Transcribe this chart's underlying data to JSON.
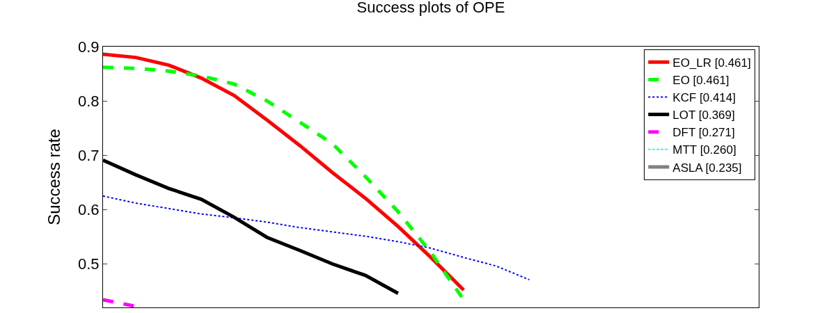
{
  "chart_data": {
    "type": "line",
    "title": "Success plots of OPE",
    "ylabel": "Success rate",
    "categories": [
      null,
      null,
      null,
      null,
      null,
      null,
      null,
      null,
      null,
      null,
      null,
      null,
      null,
      null,
      null,
      null,
      null,
      null,
      null,
      null,
      null
    ],
    "ylim": [
      0.42,
      0.9
    ],
    "yticks": [
      0.5,
      0.6,
      0.7,
      0.8,
      0.9
    ],
    "grid": false,
    "legend": "top right",
    "marker": "none",
    "tick_labels": "y",
    "series": [
      {
        "name": "EO_LR [0.461]",
        "color": "#ff0000",
        "line_style": "solid",
        "values": [
          0.886,
          0.88,
          0.866,
          0.842,
          0.81,
          0.765,
          0.718,
          0.668,
          0.621,
          0.569,
          0.512,
          0.452,
          null,
          null,
          null,
          null,
          null,
          null,
          null,
          null,
          null
        ]
      },
      {
        "name": "EO [0.461]",
        "color": "#00ff00",
        "line_style": "dashed",
        "values": [
          0.862,
          0.86,
          0.855,
          0.846,
          0.831,
          0.8,
          0.761,
          0.721,
          0.661,
          0.596,
          0.521,
          0.434,
          null,
          null,
          null,
          null,
          null,
          null,
          null,
          null,
          null
        ]
      },
      {
        "name": "KCF [0.414]",
        "color": "#0000ff",
        "line_style": "dotted",
        "values": [
          0.625,
          0.612,
          0.602,
          0.592,
          0.585,
          0.577,
          0.567,
          0.559,
          0.551,
          0.541,
          0.529,
          0.512,
          0.496,
          0.471,
          null,
          null,
          null,
          null,
          null,
          null,
          null
        ]
      },
      {
        "name": "LOT [0.369]",
        "color": "#000000",
        "line_style": "solid",
        "values": [
          0.691,
          0.664,
          0.639,
          0.619,
          0.586,
          0.549,
          0.525,
          0.5,
          0.479,
          0.446,
          null,
          null,
          null,
          null,
          null,
          null,
          null,
          null,
          null,
          null,
          null
        ]
      },
      {
        "name": "DFT [0.271]",
        "color": "#ff00ff",
        "line_style": "dashed",
        "values": [
          0.434,
          0.422,
          null,
          null,
          null,
          null,
          null,
          null,
          null,
          null,
          null,
          null,
          null,
          null,
          null,
          null,
          null,
          null,
          null,
          null,
          null
        ]
      },
      {
        "name": "MTT [0.260]",
        "color": "#00ffff",
        "line_style": "dotted",
        "values": [
          null,
          null,
          null,
          null,
          null,
          null,
          null,
          null,
          null,
          null,
          null,
          null,
          null,
          null,
          null,
          null,
          null,
          null,
          null,
          null,
          null
        ]
      },
      {
        "name": "ASLA [0.235]",
        "color": "#808080",
        "line_style": "solid",
        "values": [
          null,
          null,
          null,
          null,
          null,
          null,
          null,
          null,
          null,
          null,
          null,
          null,
          null,
          null,
          null,
          null,
          null,
          null,
          null,
          null,
          null
        ]
      }
    ]
  }
}
